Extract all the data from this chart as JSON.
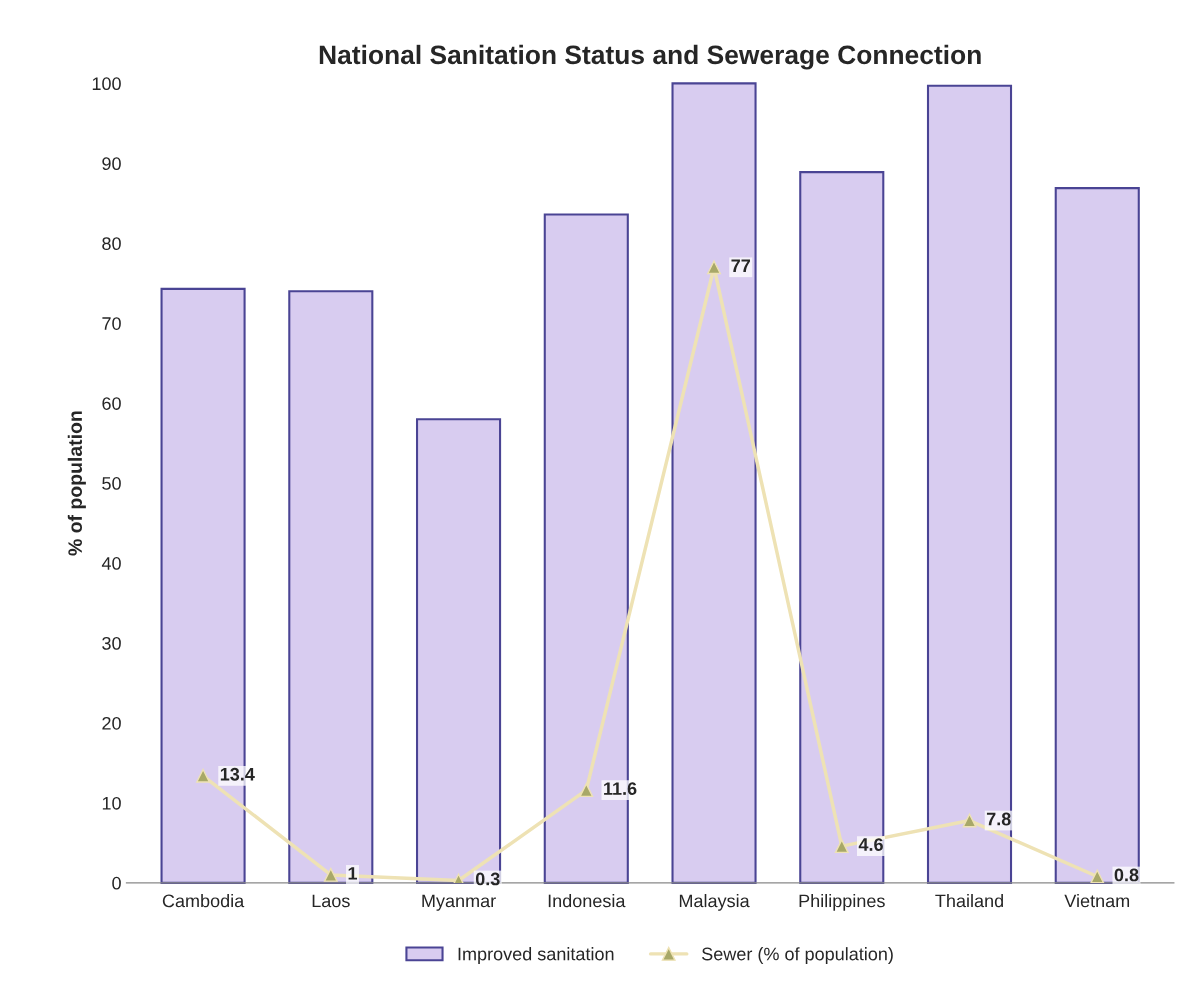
{
  "chart_data": {
    "type": "bar",
    "title": "National Sanitation Status and Sewerage Connection",
    "ylabel": "% of population",
    "categories": [
      "Cambodia",
      "Laos",
      "Myanmar",
      "Indonesia",
      "Malaysia",
      "Philippines",
      "Thailand",
      "Vietnam"
    ],
    "series": [
      {
        "name": "Improved sanitation",
        "color": "#d8ccf0",
        "values": [
          74.3,
          74,
          58,
          83.6,
          100,
          88.9,
          99.7,
          86.9
        ]
      },
      {
        "name": "Sewer (% of population)",
        "type": "line",
        "color": "#eee2b4",
        "marker": "triangle",
        "values": [
          13.4,
          1,
          0.3,
          11.6,
          77,
          4.6,
          7.8,
          0.8
        ],
        "value_labels": [
          "13.4",
          "1",
          "0.3",
          "11.6",
          "77",
          "4.6",
          "7.8",
          "0.8"
        ]
      }
    ],
    "ylim": [
      0,
      100
    ],
    "yticks": [
      0,
      10,
      20,
      30,
      40,
      50,
      60,
      70,
      80,
      90,
      100
    ],
    "grid": false,
    "legend": "bottom"
  }
}
